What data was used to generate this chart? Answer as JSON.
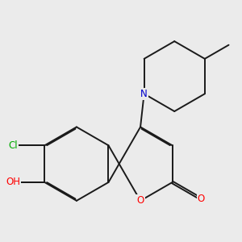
{
  "background_color": "#ebebeb",
  "bond_color": "#1a1a1a",
  "atom_colors": {
    "O": "#ff0000",
    "N": "#0000cc",
    "Cl": "#00aa00",
    "C": "#1a1a1a"
  },
  "figsize": [
    3.0,
    3.0
  ],
  "dpi": 100,
  "bond_lw": 1.4,
  "font_size": 8.5
}
